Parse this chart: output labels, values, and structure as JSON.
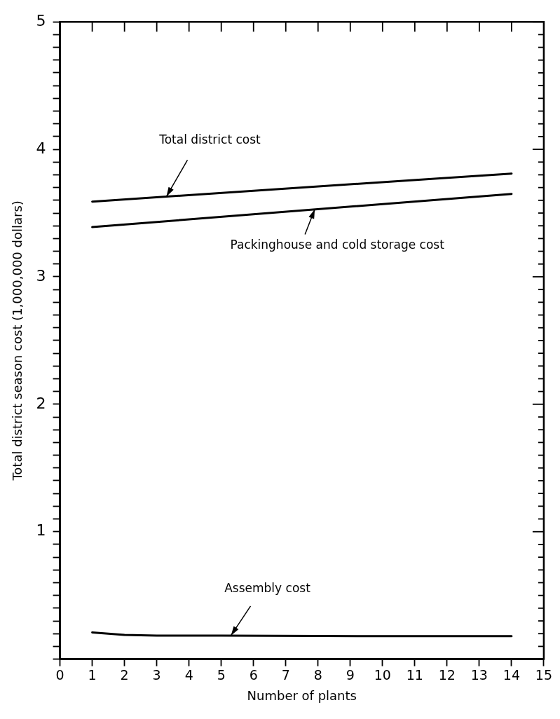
{
  "chart_data": {
    "type": "line",
    "xlabel": "Number of plants",
    "ylabel": "Total district season cost (1,000,000 dollars)",
    "xlim": [
      0,
      15
    ],
    "xticks": [
      0,
      1,
      2,
      3,
      4,
      5,
      6,
      7,
      8,
      9,
      10,
      11,
      12,
      13,
      14,
      15
    ],
    "ylim": [
      0,
      5
    ],
    "yticks": [
      {
        "value": 0,
        "label": null
      },
      {
        "value": 0.1,
        "label": null
      },
      {
        "value": 0.2,
        "label": null
      },
      {
        "value": 0.3,
        "label": null
      },
      {
        "value": 0.4,
        "label": null
      },
      {
        "value": 0.5,
        "label": null
      },
      {
        "value": 0.6,
        "label": null
      },
      {
        "value": 0.7,
        "label": null
      },
      {
        "value": 0.8,
        "label": null
      },
      {
        "value": 0.9,
        "label": null
      },
      1,
      {
        "value": 1.1,
        "label": null
      },
      {
        "value": 1.2,
        "label": null
      },
      {
        "value": 1.3,
        "label": null
      },
      {
        "value": 1.4,
        "label": null
      },
      {
        "value": 1.5,
        "label": null
      },
      {
        "value": 1.6,
        "label": null
      },
      {
        "value": 1.7,
        "label": null
      },
      {
        "value": 1.8,
        "label": null
      },
      {
        "value": 1.9,
        "label": null
      },
      2,
      {
        "value": 2.1,
        "label": null
      },
      {
        "value": 2.2,
        "label": null
      },
      {
        "value": 2.3,
        "label": null
      },
      {
        "value": 2.4,
        "label": null
      },
      {
        "value": 2.5,
        "label": null
      },
      {
        "value": 2.6,
        "label": null
      },
      {
        "value": 2.7,
        "label": null
      },
      {
        "value": 2.8,
        "label": null
      },
      {
        "value": 2.9,
        "label": null
      },
      3,
      {
        "value": 3.1,
        "label": null
      },
      {
        "value": 3.2,
        "label": null
      },
      {
        "value": 3.3,
        "label": null
      },
      {
        "value": 3.4,
        "label": null
      },
      {
        "value": 3.5,
        "label": null
      },
      {
        "value": 3.6,
        "label": null
      },
      {
        "value": 3.7,
        "label": null
      },
      {
        "value": 3.8,
        "label": null
      },
      {
        "value": 3.9,
        "label": null
      },
      4,
      {
        "value": 4.1,
        "label": null
      },
      {
        "value": 4.2,
        "label": null
      },
      {
        "value": 4.3,
        "label": null
      },
      {
        "value": 4.4,
        "label": null
      },
      {
        "value": 4.5,
        "label": null
      },
      {
        "value": 4.6,
        "label": null
      },
      {
        "value": 4.7,
        "label": null
      },
      {
        "value": 4.8,
        "label": null
      },
      {
        "value": 4.9,
        "label": null
      },
      5
    ],
    "grid": false,
    "legend": false,
    "marker": "none",
    "line_style": "solid",
    "series": [
      {
        "color": "#000000",
        "x": [
          1,
          14
        ],
        "values": [
          3.59,
          3.81
        ]
      },
      {
        "color": "#000000",
        "x": [
          1,
          14
        ],
        "values": [
          3.39,
          3.65
        ]
      },
      {
        "color": "#000000",
        "x": [
          1,
          2,
          3,
          5,
          8,
          11,
          14
        ],
        "values": [
          0.21,
          0.19,
          0.185,
          0.185,
          0.182,
          0.18,
          0.18
        ]
      }
    ],
    "annotations": [
      {
        "text": "Total district cost",
        "x": 3.3,
        "y": 3.63
      },
      {
        "text": "Packinghouse and cold storage cost",
        "x": 7.9,
        "y": 3.53
      },
      {
        "text": "Assembly cost",
        "x": 5.3,
        "y": 0.185
      }
    ]
  }
}
